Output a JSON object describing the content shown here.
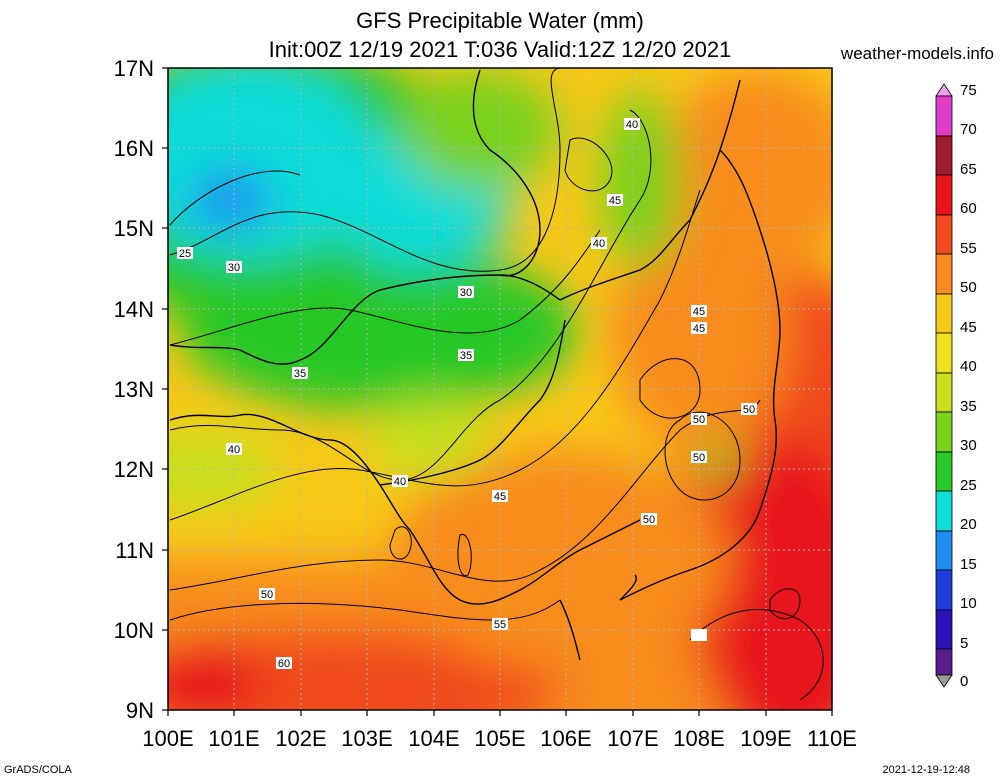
{
  "header": {
    "title_line1": "GFS Precipitable Water (mm)",
    "title_line2": "Init:00Z 12/19 2021 T:036 Valid:12Z 12/20 2021",
    "site": "weather-models.info"
  },
  "map": {
    "lat_labels": [
      "17N",
      "16N",
      "15N",
      "14N",
      "13N",
      "12N",
      "11N",
      "10N",
      "9N"
    ],
    "lon_labels": [
      "100E",
      "101E",
      "102E",
      "103E",
      "104E",
      "105E",
      "106E",
      "107E",
      "108E",
      "109E",
      "110E"
    ],
    "contour_labels": [
      "25",
      "30",
      "30",
      "35",
      "35",
      "40",
      "40",
      "40",
      "40",
      "45",
      "45",
      "45",
      "45",
      "50",
      "50",
      "50",
      "50",
      "50",
      "55",
      "60"
    ]
  },
  "colorbar": {
    "labels": [
      "75",
      "70",
      "65",
      "60",
      "55",
      "50",
      "45",
      "40",
      "35",
      "30",
      "25",
      "20",
      "15",
      "10",
      "5",
      "0"
    ],
    "colors": [
      "#f0a0f0",
      "#e03cc8",
      "#a01c2c",
      "#e8141c",
      "#f04a1e",
      "#f88c1e",
      "#f8c818",
      "#c8e01e",
      "#78d21e",
      "#28c828",
      "#10dcd8",
      "#1e8cf0",
      "#1e3cdc",
      "#2814b4",
      "#5a1e8c",
      "#9a9a9a"
    ]
  },
  "footer": {
    "left": "GrADS/COLA",
    "right": "2021-12-19-12:48"
  }
}
